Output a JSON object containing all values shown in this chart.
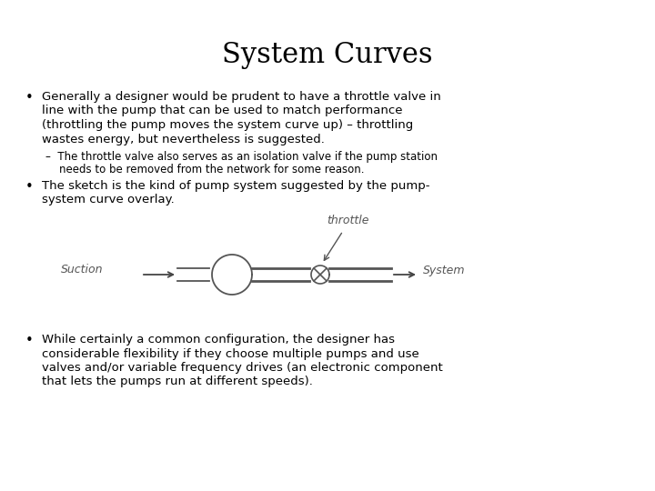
{
  "title": "System Curves",
  "title_fontsize": 22,
  "title_fontfamily": "serif",
  "background_color": "#ffffff",
  "text_color": "#000000",
  "body_fontsize": 9.5,
  "sub_fontsize": 8.5,
  "sketch_label_suction": "Suction",
  "sketch_label_throttle": "throttle",
  "sketch_label_system": "System",
  "bullet1_lines": [
    "Generally a designer would be prudent to have a throttle valve in",
    "line with the pump that can be used to match performance",
    "(throttling the pump moves the system curve up) – throttling",
    "wastes energy, but nevertheless is suggested."
  ],
  "sub_bullet1_lines": [
    "–  The throttle valve also serves as an isolation valve if the pump station",
    "    needs to be removed from the network for some reason."
  ],
  "bullet2_lines": [
    "The sketch is the kind of pump system suggested by the pump-",
    "system curve overlay."
  ],
  "bullet3_lines": [
    "While certainly a common configuration, the designer has",
    "considerable flexibility if they choose multiple pumps and use",
    "valves and/or variable frequency drives (an electronic component",
    "that lets the pumps run at different speeds)."
  ]
}
